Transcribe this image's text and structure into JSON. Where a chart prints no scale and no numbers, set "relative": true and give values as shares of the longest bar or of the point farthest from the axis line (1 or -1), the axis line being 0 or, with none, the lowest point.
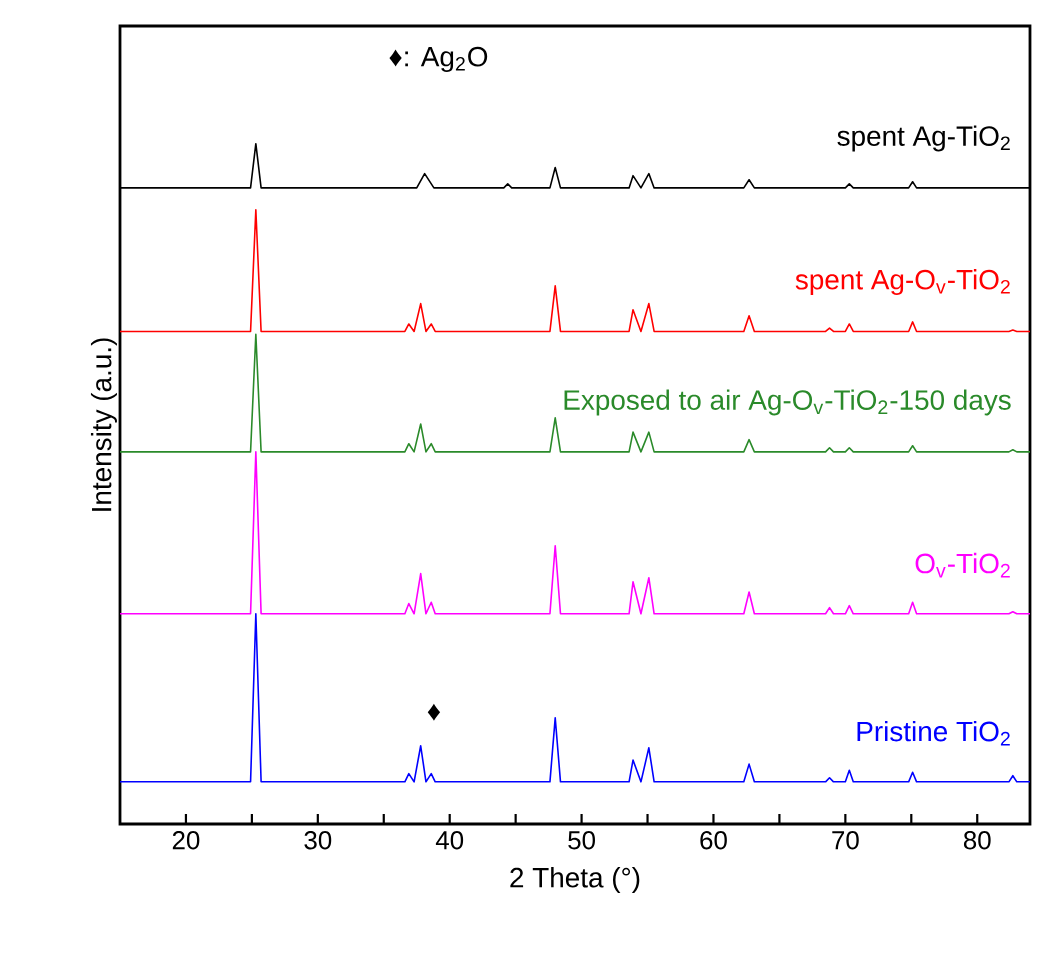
{
  "chart_data": {
    "type": "line",
    "relative": true,
    "xlabel": "2 Theta (°)",
    "ylabel": "Intensity (a.u.)",
    "xlim": [
      15,
      84
    ],
    "xticks": [
      20,
      {
        "value": 25,
        "label": null
      },
      30,
      {
        "value": 35,
        "label": null
      },
      40,
      {
        "value": 45,
        "label": null
      },
      50,
      {
        "value": 55,
        "label": null
      },
      60,
      {
        "value": 65,
        "label": null
      },
      70,
      {
        "value": 75,
        "label": null
      },
      80
    ],
    "annotations": [
      "♦: Ag$_{2}$O",
      "♦"
    ],
    "series": [
      {
        "name": "spent Ag-TiO$_{2}$",
        "color": "#000000",
        "x": [
          15,
          24.9,
          25.3,
          25.7,
          37.5,
          38.1,
          38.8,
          44.1,
          44.4,
          44.7,
          47.6,
          48.0,
          48.4,
          53.6,
          53.9,
          54.5,
          55.1,
          55.5,
          62.3,
          62.7,
          63.1,
          70.0,
          70.3,
          70.6,
          74.8,
          75.1,
          75.4,
          84
        ],
        "values": [
          0.935,
          0.935,
          1.0,
          0.935,
          0.935,
          0.956,
          0.935,
          0.935,
          0.941,
          0.935,
          0.935,
          0.965,
          0.935,
          0.935,
          0.953,
          0.935,
          0.956,
          0.935,
          0.935,
          0.947,
          0.935,
          0.935,
          0.941,
          0.935,
          0.935,
          0.944,
          0.935,
          0.935
        ]
      },
      {
        "name": "spent Ag-O$_{v}$-TiO$_{2}$",
        "color": "#ff0000",
        "x": [
          15,
          24.9,
          25.3,
          25.7,
          36.6,
          36.9,
          37.3,
          37.8,
          38.2,
          38.6,
          38.9,
          47.6,
          48.0,
          48.4,
          53.6,
          53.9,
          54.5,
          55.1,
          55.5,
          62.3,
          62.7,
          63.1,
          68.5,
          68.8,
          69.1,
          70.0,
          70.3,
          70.6,
          74.8,
          75.1,
          75.4,
          82.4,
          82.7,
          83.0,
          84
        ],
        "values": [
          0.724,
          0.724,
          0.903,
          0.724,
          0.724,
          0.735,
          0.724,
          0.765,
          0.724,
          0.735,
          0.724,
          0.724,
          0.791,
          0.724,
          0.724,
          0.756,
          0.724,
          0.765,
          0.724,
          0.724,
          0.747,
          0.724,
          0.724,
          0.729,
          0.724,
          0.724,
          0.735,
          0.724,
          0.724,
          0.738,
          0.724,
          0.724,
          0.726,
          0.724,
          0.724
        ]
      },
      {
        "name": "Exposed to air Ag-O$_{v}$-TiO$_{2}$-150 days",
        "color": "#2a8a2a",
        "x": [
          15,
          24.9,
          25.3,
          25.7,
          36.6,
          36.9,
          37.3,
          37.8,
          38.2,
          38.6,
          38.9,
          47.6,
          48.0,
          48.4,
          53.6,
          53.9,
          54.5,
          55.1,
          55.5,
          62.3,
          62.7,
          63.1,
          68.5,
          68.8,
          69.1,
          70.0,
          70.3,
          70.6,
          74.8,
          75.1,
          75.4,
          82.4,
          82.7,
          83.0,
          84
        ],
        "values": [
          0.547,
          0.547,
          0.72,
          0.547,
          0.547,
          0.559,
          0.547,
          0.588,
          0.547,
          0.559,
          0.547,
          0.547,
          0.597,
          0.547,
          0.547,
          0.576,
          0.547,
          0.576,
          0.547,
          0.547,
          0.565,
          0.547,
          0.547,
          0.553,
          0.547,
          0.547,
          0.553,
          0.547,
          0.547,
          0.556,
          0.547,
          0.547,
          0.55,
          0.547,
          0.547
        ]
      },
      {
        "name": "O$_{v}$-TiO$_{2}$",
        "color": "#ff00ff",
        "x": [
          15,
          24.9,
          25.3,
          25.7,
          36.6,
          36.9,
          37.3,
          37.8,
          38.2,
          38.6,
          38.9,
          47.6,
          48.0,
          48.4,
          53.6,
          53.9,
          54.5,
          55.1,
          55.5,
          62.3,
          62.7,
          63.1,
          68.5,
          68.8,
          69.1,
          70.0,
          70.3,
          70.6,
          74.8,
          75.1,
          75.4,
          82.4,
          82.7,
          83.0,
          84
        ],
        "values": [
          0.309,
          0.309,
          0.547,
          0.309,
          0.309,
          0.324,
          0.309,
          0.368,
          0.309,
          0.326,
          0.309,
          0.309,
          0.409,
          0.309,
          0.309,
          0.356,
          0.309,
          0.362,
          0.309,
          0.309,
          0.341,
          0.309,
          0.309,
          0.318,
          0.309,
          0.309,
          0.321,
          0.309,
          0.309,
          0.326,
          0.309,
          0.309,
          0.312,
          0.309,
          0.309
        ]
      },
      {
        "name": "Pristine TiO$_{2}$",
        "color": "#0000ff",
        "x": [
          15,
          24.9,
          25.3,
          25.7,
          36.6,
          36.9,
          37.3,
          37.8,
          38.2,
          38.6,
          38.9,
          47.6,
          48.0,
          48.4,
          53.6,
          53.9,
          54.5,
          55.1,
          55.5,
          62.3,
          62.7,
          63.1,
          68.5,
          68.8,
          69.1,
          70.0,
          70.3,
          70.6,
          74.8,
          75.1,
          75.4,
          82.4,
          82.7,
          83.0,
          84
        ],
        "values": [
          0.062,
          0.062,
          0.309,
          0.062,
          0.062,
          0.074,
          0.062,
          0.115,
          0.062,
          0.074,
          0.062,
          0.062,
          0.156,
          0.062,
          0.062,
          0.094,
          0.062,
          0.112,
          0.062,
          0.062,
          0.088,
          0.062,
          0.062,
          0.068,
          0.062,
          0.062,
          0.079,
          0.062,
          0.062,
          0.076,
          0.062,
          0.062,
          0.071,
          0.062,
          0.062
        ]
      }
    ]
  }
}
